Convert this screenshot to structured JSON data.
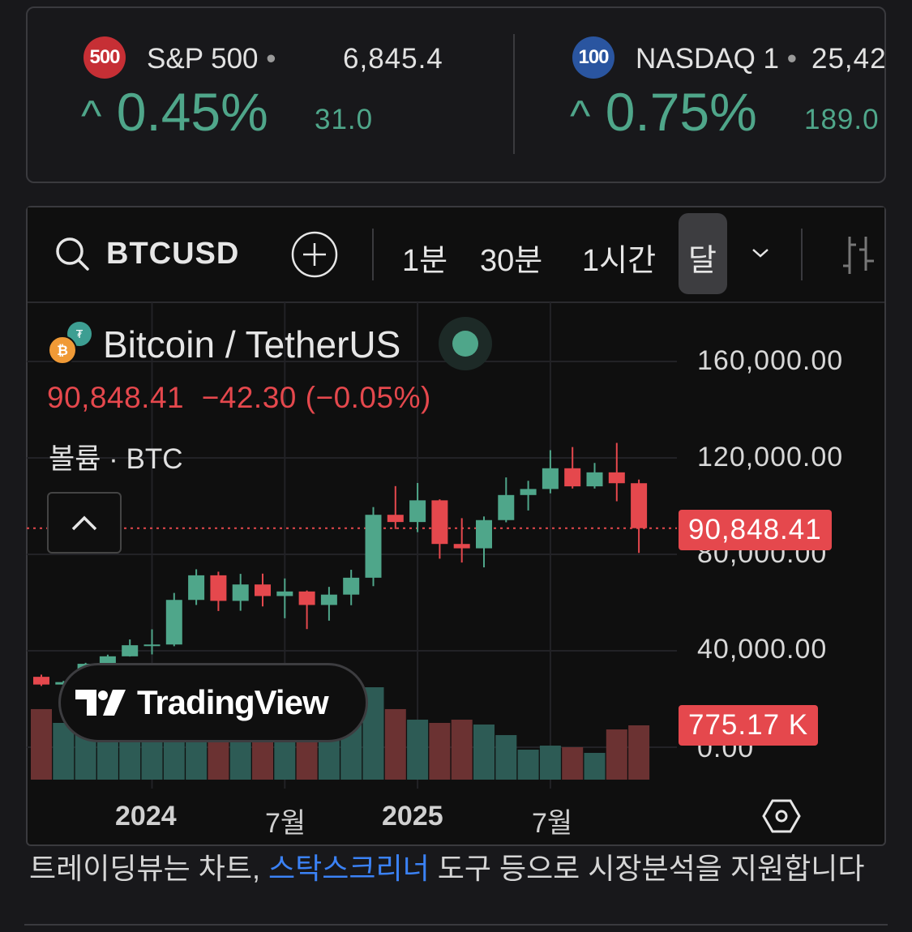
{
  "tickers": [
    {
      "badge": "500",
      "badge_color": "#c62f35",
      "name": "S&P 500",
      "dot": "•",
      "price": "6,845.4",
      "arrow": "^",
      "change_pct": "0.45%",
      "change_abs": "31.0"
    },
    {
      "badge": "100",
      "badge_color": "#2a55a0",
      "name": "NASDAQ 1",
      "dot": "•",
      "price": "25,42",
      "arrow": "^",
      "change_pct": "0.75%",
      "change_abs": "189.0"
    }
  ],
  "toolbar": {
    "symbol": "BTCUSD",
    "timeframes": [
      "1분",
      "30분",
      "1시간",
      "달"
    ],
    "active_timeframe": "달"
  },
  "legend": {
    "title": "Bitcoin / TetherUS",
    "price": "90,848.41",
    "change": "−42.30 (−0.05%)",
    "volume_label": "볼륨 · BTC"
  },
  "watermark": "TradingView",
  "colors": {
    "up": "#4fa68a",
    "down": "#e5484d",
    "up_volume": "#2d5b55",
    "down_volume": "#6b3232",
    "link": "#3b82f6"
  },
  "chart_data": {
    "type": "candlestick",
    "interval": "monthly",
    "categories": [
      "2023-08",
      "2023-09",
      "2023-10",
      "2023-11",
      "2023-12",
      "2024-01",
      "2024-02",
      "2024-03",
      "2024-04",
      "2024-05",
      "2024-06",
      "2024-07",
      "2024-08",
      "2024-09",
      "2024-10",
      "2024-11",
      "2024-12",
      "2025-01",
      "2025-02",
      "2025-03",
      "2025-04",
      "2025-05",
      "2025-06",
      "2025-07",
      "2025-08",
      "2025-09",
      "2025-10",
      "2025-11"
    ],
    "ohlc": [
      [
        29200,
        30100,
        25400,
        26000
      ],
      [
        26000,
        27500,
        24900,
        27000
      ],
      [
        27000,
        35000,
        26500,
        34600
      ],
      [
        34600,
        38400,
        34100,
        37700
      ],
      [
        37700,
        44700,
        37600,
        42300
      ],
      [
        42300,
        48900,
        38500,
        42600
      ],
      [
        42600,
        64000,
        41900,
        61100
      ],
      [
        61100,
        73800,
        59000,
        71300
      ],
      [
        71300,
        72800,
        56500,
        60700
      ],
      [
        60700,
        71900,
        56600,
        67500
      ],
      [
        67500,
        72000,
        58400,
        62700
      ],
      [
        62700,
        70000,
        53500,
        64600
      ],
      [
        64600,
        65000,
        49000,
        59000
      ],
      [
        59000,
        66500,
        52500,
        63300
      ],
      [
        63300,
        73600,
        58900,
        70300
      ],
      [
        70300,
        99600,
        66800,
        96400
      ],
      [
        96400,
        108300,
        90500,
        93400
      ],
      [
        93400,
        109600,
        89200,
        102400
      ],
      [
        102400,
        102800,
        78200,
        84300
      ],
      [
        84300,
        95000,
        76600,
        82500
      ],
      [
        82500,
        95700,
        74600,
        94200
      ],
      [
        94200,
        111900,
        93300,
        104600
      ],
      [
        104600,
        110500,
        98200,
        107100
      ],
      [
        107100,
        123200,
        105300,
        115700
      ],
      [
        115700,
        124500,
        107300,
        108200
      ],
      [
        108200,
        117900,
        107300,
        114000
      ],
      [
        114000,
        126200,
        102000,
        109500
      ],
      [
        109500,
        111000,
        80600,
        90848.41
      ]
    ],
    "volume": [
      1007000,
      810000,
      900000,
      950000,
      1000000,
      1050000,
      1100000,
      1000000,
      950000,
      900000,
      880000,
      920000,
      980000,
      870000,
      900000,
      1319000,
      1007000,
      856000,
      810000,
      856000,
      787000,
      636000,
      428000,
      486000,
      463000,
      382000,
      717000,
      775170
    ],
    "price_axis_ticks": [
      "160,000.00",
      "120,000.00",
      "80,000.00",
      "40,000.00"
    ],
    "price_axis_values": [
      160000,
      120000,
      80000,
      40000
    ],
    "volume_axis_tick": "0.00",
    "time_axis_labels": [
      "2024",
      "7월",
      "2025",
      "7월"
    ],
    "last_price_label": "90,848.41",
    "last_volume_label": "775.17 K"
  },
  "footer": {
    "text_before": "트레이딩뷰는 차트, ",
    "link": "스탁스크리너",
    "text_after": " 도구 등으로 시장분석을 지원합니다"
  }
}
